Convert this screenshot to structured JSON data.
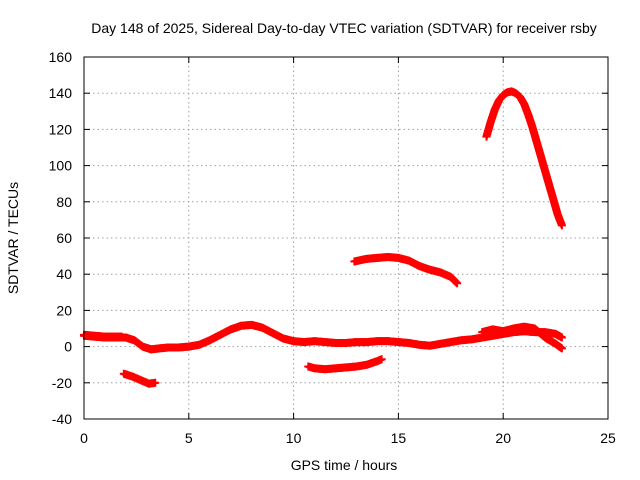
{
  "chart_data": {
    "type": "scatter",
    "title": "Day 148 of 2025, Sidereal Day-to-day VTEC variation (SDTVAR) for receiver rsby",
    "xlabel": "GPS time / hours",
    "ylabel": "SDTVAR / TECUs",
    "xlim": [
      0,
      25
    ],
    "ylim": [
      -40,
      160
    ],
    "xticks": [
      0,
      5,
      10,
      15,
      20,
      25
    ],
    "yticks": [
      -40,
      -20,
      0,
      20,
      40,
      60,
      80,
      100,
      120,
      140,
      160
    ],
    "xtick_labels": [
      "0",
      "5",
      "10",
      "15",
      "20",
      "25"
    ],
    "ytick_labels": [
      "-40",
      "-20",
      "0",
      "20",
      "40",
      "60",
      "80",
      "100",
      "120",
      "140",
      "160"
    ],
    "grid": true,
    "marker": "+",
    "color": "#ff0000",
    "series": [
      {
        "segments": [
          {
            "x": [
              0.0,
              0.5,
              1.0,
              1.5,
              2.0,
              2.4,
              2.8,
              3.2,
              3.6,
              4.0,
              4.5,
              5.0,
              5.5,
              6.0,
              6.5,
              7.0,
              7.5,
              8.0,
              8.5,
              9.0,
              9.5,
              10.0,
              10.5,
              11.0,
              11.5,
              12.0,
              12.5,
              13.0,
              13.5,
              14.0,
              14.5,
              15.0,
              15.5,
              16.0,
              16.5,
              17.0,
              17.5,
              18.0,
              18.5,
              19.0,
              19.5,
              20.0,
              20.5,
              21.0,
              21.5,
              22.0,
              22.5,
              22.8
            ],
            "y": [
              6,
              5.5,
              5,
              5,
              5,
              3.5,
              0,
              -1.5,
              -1,
              -0.5,
              -0.5,
              0,
              1,
              3.5,
              6.5,
              9.5,
              11.5,
              12,
              10.5,
              7.5,
              4.5,
              3,
              2.5,
              3,
              2.5,
              2,
              2,
              2.5,
              2.5,
              3,
              3,
              2.5,
              2,
              1,
              0.5,
              1.5,
              2.5,
              3.5,
              4,
              5,
              6,
              7,
              8,
              8.5,
              8,
              8,
              7,
              5
            ]
          },
          {
            "x": [
              19.0,
              19.5,
              20.0,
              20.5,
              21.0,
              21.5,
              22.0,
              22.5,
              22.8
            ],
            "y": [
              8,
              9.5,
              8.5,
              10,
              11,
              10,
              5,
              1.5,
              -1
            ]
          },
          {
            "x": [
              0.0,
              0.5,
              1.0,
              1.5,
              1.8
            ],
            "y": [
              6.5,
              6,
              5.5,
              5.5,
              5.5
            ]
          },
          {
            "x": [
              1.9,
              2.3,
              2.7,
              3.1,
              3.4
            ],
            "y": [
              -15,
              -16.5,
              -18.5,
              -20.5,
              -20
            ]
          },
          {
            "x": [
              10.7,
              11.0,
              11.5,
              12.0,
              12.5,
              13.0,
              13.5,
              14.0,
              14.2
            ],
            "y": [
              -11,
              -12,
              -12.5,
              -12,
              -11.5,
              -11,
              -10,
              -8,
              -7
            ]
          },
          {
            "x": [
              12.9,
              13.5,
              14.0,
              14.5,
              15.0,
              15.5,
              16.0,
              16.5,
              17.0,
              17.5,
              17.8
            ],
            "y": [
              47,
              48.5,
              49,
              49.5,
              49,
              47.5,
              44.5,
              42.5,
              41,
              38.5,
              35
            ]
          },
          {
            "x": [
              19.2,
              19.4,
              19.6,
              19.8,
              20.0,
              20.2,
              20.4,
              20.6,
              20.8,
              21.0,
              21.2,
              21.4,
              21.6,
              21.8,
              22.0,
              22.2,
              22.4,
              22.6,
              22.8
            ],
            "y": [
              116,
              124,
              131,
              136,
              139,
              140.5,
              141,
              140,
              138,
              134,
              128,
              121,
              113,
              105,
              97,
              89,
              81,
              73,
              67
            ]
          }
        ]
      }
    ]
  }
}
